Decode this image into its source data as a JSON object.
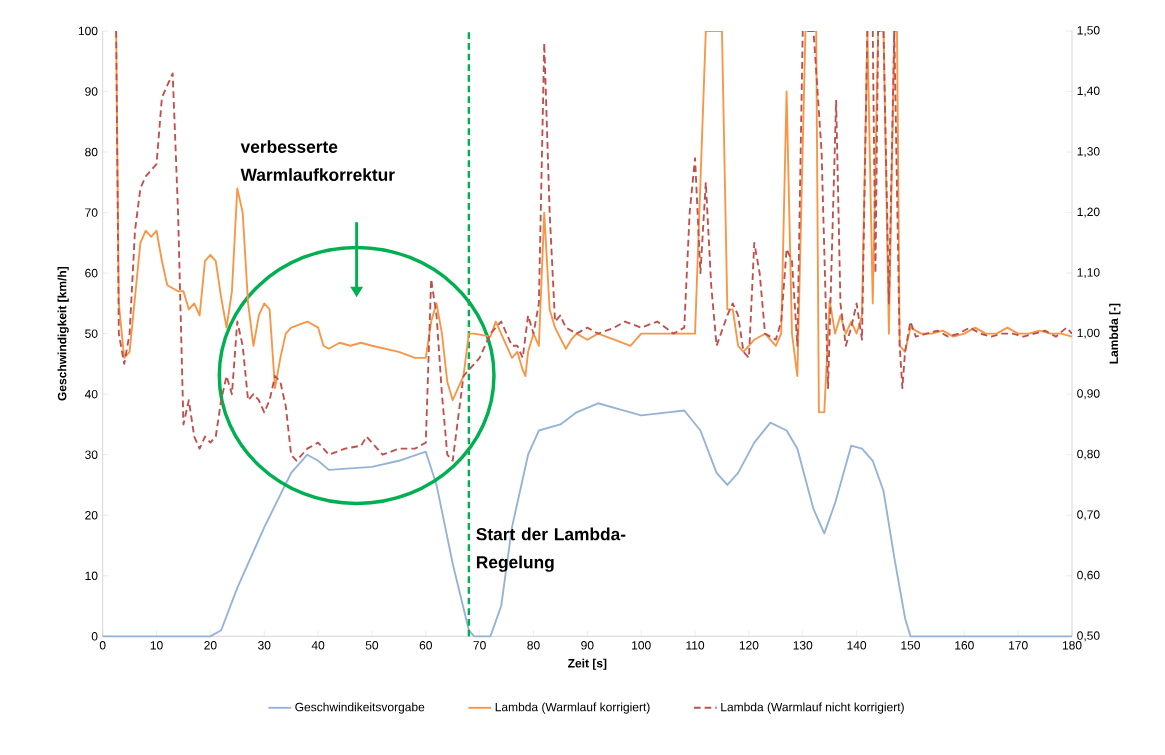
{
  "chart_data": {
    "type": "line",
    "xlabel": "Zeit [s]",
    "ylabel": "Geschwindigkeit [km/h]",
    "y2label": "Lambda [-]",
    "xlim": [
      0,
      180
    ],
    "xticks": [
      0,
      10,
      20,
      30,
      40,
      50,
      60,
      70,
      80,
      90,
      100,
      110,
      120,
      130,
      140,
      150,
      160,
      170,
      180
    ],
    "ylim": [
      0,
      100
    ],
    "yticks": [
      0,
      10,
      20,
      30,
      40,
      50,
      60,
      70,
      80,
      90,
      100
    ],
    "y2lim": [
      0.5,
      1.5
    ],
    "y2ticks": [
      {
        "value": 0.5,
        "label": "0,50"
      },
      {
        "value": 0.6,
        "label": "0,60"
      },
      {
        "value": 0.7,
        "label": "0,70"
      },
      {
        "value": 0.8,
        "label": "0,80"
      },
      {
        "value": 0.9,
        "label": "0,90"
      },
      {
        "value": 1.0,
        "label": "1,00"
      },
      {
        "value": 1.1,
        "label": "1,10"
      },
      {
        "value": 1.2,
        "label": "1,20"
      },
      {
        "value": 1.3,
        "label": "1,30"
      },
      {
        "value": 1.4,
        "label": "1,40"
      },
      {
        "value": 1.5,
        "label": "1,50"
      }
    ],
    "legend": "bottom",
    "series": [
      {
        "name": "Geschwindikeitsvorgabe",
        "color": "#95b3d7",
        "x": [
          0,
          20,
          22,
          25,
          30,
          35,
          38,
          40,
          42,
          50,
          55,
          60,
          62,
          65,
          68,
          69,
          72,
          74,
          76,
          79,
          81,
          85,
          88,
          92,
          96,
          100,
          105,
          108,
          111,
          114,
          116,
          118,
          121,
          124,
          127,
          129,
          132,
          134,
          136,
          139,
          141,
          143,
          145,
          147,
          149,
          150,
          180
        ],
        "values": [
          0,
          0,
          1,
          8,
          18,
          27,
          30,
          29,
          27.5,
          28,
          29,
          30.5,
          25,
          12,
          1,
          0,
          0,
          5,
          18,
          30,
          34,
          35,
          37,
          38.5,
          37.5,
          36.5,
          37,
          37.3,
          34,
          27,
          25,
          27,
          32,
          35.3,
          34,
          31,
          21,
          17,
          22,
          31.5,
          31,
          29,
          24,
          13,
          3,
          0,
          0
        ]
      },
      {
        "name": "Lambda (Warmlauf korrigiert)",
        "color": "#f79646",
        "axis": "y2",
        "x": [
          2.5,
          3,
          4,
          5,
          7,
          8,
          9,
          10,
          11,
          12,
          14,
          15,
          16,
          17,
          18,
          19,
          20,
          21,
          22,
          23,
          24,
          25,
          26,
          27,
          28,
          29,
          30,
          31,
          32,
          33,
          34,
          35,
          38,
          39,
          40,
          41,
          42,
          44,
          46,
          48,
          50,
          55,
          58,
          60,
          61,
          62,
          63,
          64,
          65,
          66,
          67,
          68,
          69,
          72,
          73,
          75,
          76,
          77,
          78,
          78.5,
          79,
          80,
          81,
          82,
          83,
          84,
          86,
          87,
          88,
          90,
          92,
          95,
          98,
          100,
          102,
          110,
          112,
          115,
          116,
          117,
          118,
          119,
          121,
          123,
          125,
          126,
          127,
          128,
          129,
          130.5,
          132.5,
          133,
          134,
          135,
          136,
          137,
          138,
          139,
          140,
          141,
          142,
          143,
          144,
          145,
          146,
          147,
          147.5,
          148,
          149,
          150,
          152,
          154,
          156,
          158,
          160,
          162,
          164,
          166,
          168,
          170,
          172,
          174,
          176,
          178,
          180
        ],
        "values": [
          1.5,
          1.05,
          0.96,
          0.97,
          1.15,
          1.17,
          1.16,
          1.17,
          1.12,
          1.08,
          1.07,
          1.07,
          1.04,
          1.05,
          1.03,
          1.12,
          1.13,
          1.12,
          1.06,
          1.01,
          1.07,
          1.24,
          1.2,
          1.05,
          0.98,
          1.03,
          1.05,
          1.04,
          0.91,
          0.96,
          1.0,
          1.01,
          1.02,
          1.015,
          1.01,
          0.98,
          0.975,
          0.985,
          0.98,
          0.985,
          0.98,
          0.97,
          0.96,
          0.96,
          1.02,
          1.05,
          1.0,
          0.92,
          0.89,
          0.91,
          0.93,
          1.0,
          1.0,
          0.995,
          1.02,
          0.98,
          0.96,
          0.97,
          0.94,
          0.93,
          0.97,
          1.0,
          0.98,
          1.2,
          1.04,
          1.01,
          0.975,
          0.99,
          1.0,
          0.99,
          1.0,
          0.99,
          0.98,
          1.0,
          1.0,
          1.0,
          1.5,
          1.5,
          1.04,
          1.04,
          0.98,
          0.97,
          0.99,
          1.0,
          0.98,
          1.0,
          1.4,
          1.0,
          0.93,
          1.5,
          1.5,
          0.87,
          0.87,
          1.055,
          1.0,
          1.03,
          1.0,
          1.02,
          1.0,
          1.03,
          1.5,
          1.05,
          1.5,
          1.5,
          1.0,
          1.5,
          1.5,
          0.98,
          0.97,
          1.01,
          1.0,
          1.0,
          1.005,
          0.995,
          1.0,
          1.01,
          1.0,
          1.0,
          1.01,
          1.0,
          1.0,
          1.005,
          1.0,
          1.0,
          0.995
        ]
      },
      {
        "name": "Lambda (Warmlauf nicht korrigiert)",
        "color": "#c0504d",
        "axis": "y2",
        "line_style": "dashed",
        "x": [
          2.5,
          3,
          4,
          5,
          6,
          7,
          8,
          9,
          10,
          11,
          12,
          13,
          14,
          15,
          16,
          17,
          18,
          19,
          20,
          21,
          22,
          23,
          24,
          25,
          26,
          27,
          28,
          29,
          30,
          31,
          32,
          33,
          34,
          35,
          36,
          38,
          40,
          42,
          45,
          48,
          49,
          50,
          52,
          55,
          58,
          60,
          61,
          62,
          63,
          64,
          65,
          66,
          67,
          68,
          70,
          72,
          73,
          74,
          75,
          76,
          77,
          78,
          79,
          80,
          81,
          82,
          83,
          84,
          85,
          86,
          88,
          90,
          92,
          95,
          97,
          100,
          103,
          106,
          108,
          109,
          110,
          111,
          112,
          113,
          114,
          116,
          117,
          118,
          119,
          120,
          121,
          122,
          123,
          125,
          126,
          127,
          128,
          129,
          130,
          131,
          132,
          133.5,
          134.7,
          136.2,
          137,
          138,
          139,
          140,
          141,
          142,
          143,
          143.5,
          144,
          145,
          146,
          147,
          148,
          148.5,
          149,
          150,
          151,
          153,
          155,
          157,
          159,
          161,
          163,
          165,
          167,
          169,
          171,
          173,
          175,
          177,
          179,
          180
        ],
        "values": [
          1.5,
          1.0,
          0.95,
          1.0,
          1.17,
          1.24,
          1.26,
          1.27,
          1.28,
          1.39,
          1.41,
          1.43,
          1.2,
          0.85,
          0.89,
          0.83,
          0.81,
          0.83,
          0.82,
          0.83,
          0.89,
          0.93,
          0.9,
          1.02,
          0.98,
          0.89,
          0.9,
          0.89,
          0.87,
          0.89,
          0.93,
          0.92,
          0.88,
          0.8,
          0.79,
          0.81,
          0.82,
          0.8,
          0.81,
          0.815,
          0.83,
          0.82,
          0.8,
          0.81,
          0.81,
          0.82,
          1.09,
          1.03,
          0.9,
          0.8,
          0.79,
          0.86,
          0.93,
          0.94,
          0.96,
          1.0,
          1.01,
          1.02,
          1.0,
          0.98,
          0.98,
          0.96,
          1.03,
          1.0,
          1.05,
          1.48,
          1.2,
          1.02,
          1.03,
          1.01,
          1.0,
          1.01,
          1.0,
          1.01,
          1.02,
          1.01,
          1.02,
          1.0,
          1.01,
          1.2,
          1.29,
          1.1,
          1.25,
          1.08,
          0.98,
          1.03,
          1.05,
          1.03,
          0.97,
          0.96,
          1.15,
          1.1,
          1.0,
          0.99,
          1.02,
          1.14,
          1.12,
          0.98,
          1.5,
          1.5,
          1.5,
          1.3,
          0.91,
          1.385,
          1.05,
          0.98,
          1.01,
          1.05,
          0.99,
          1.5,
          1.5,
          1.1,
          1.5,
          1.5,
          1.05,
          1.5,
          0.98,
          0.91,
          0.97,
          1.02,
          0.995,
          1.0,
          1.005,
          0.995,
          1.0,
          1.01,
          1.0,
          0.995,
          1.0,
          1.0,
          0.995,
          1.0,
          1.005,
          0.995,
          1.01,
          1.0
        ]
      }
    ],
    "ref_lines": [
      {
        "axis": "x",
        "value": 68,
        "label": "Start der Lambda-Regelung",
        "color": "#00b050",
        "line_style": "dashed"
      }
    ],
    "annotations": [
      "verbesserte Warmlaufkorrektur"
    ]
  }
}
